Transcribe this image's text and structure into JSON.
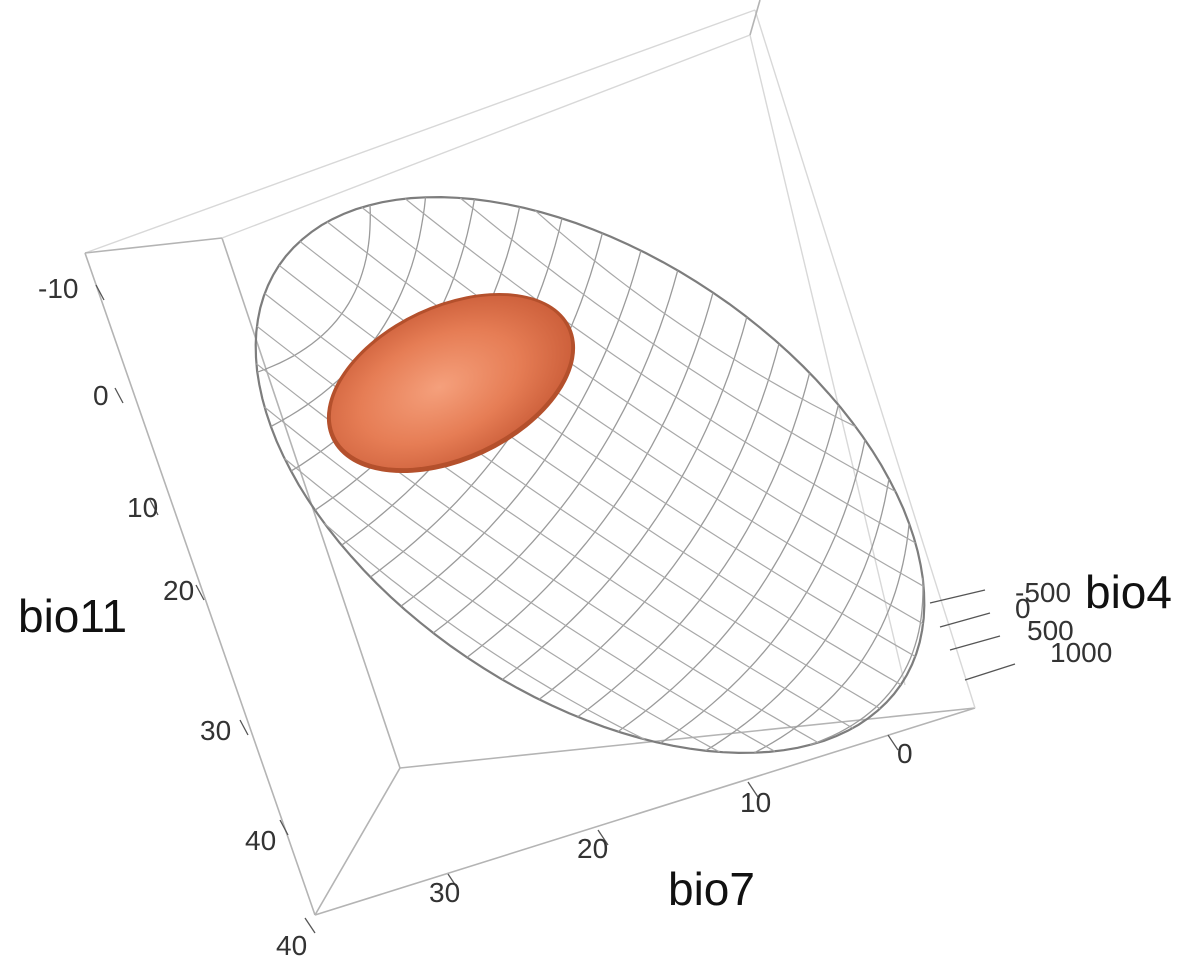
{
  "chart_data": {
    "type": "3d-ellipsoid",
    "axes": [
      {
        "name": "bio11",
        "ticks": [
          "-10",
          "0",
          "10",
          "20",
          "30",
          "40"
        ]
      },
      {
        "name": "bio7",
        "ticks": [
          "0",
          "10",
          "20",
          "30",
          "40"
        ]
      },
      {
        "name": "bio4",
        "ticks": [
          "-500",
          "0",
          "500",
          "1000"
        ]
      }
    ],
    "ellipsoids": [
      {
        "role": "outer",
        "style": "wireframe",
        "color": "#8a8a8a"
      },
      {
        "role": "inner",
        "style": "solid",
        "color": "#e07a50"
      }
    ]
  }
}
